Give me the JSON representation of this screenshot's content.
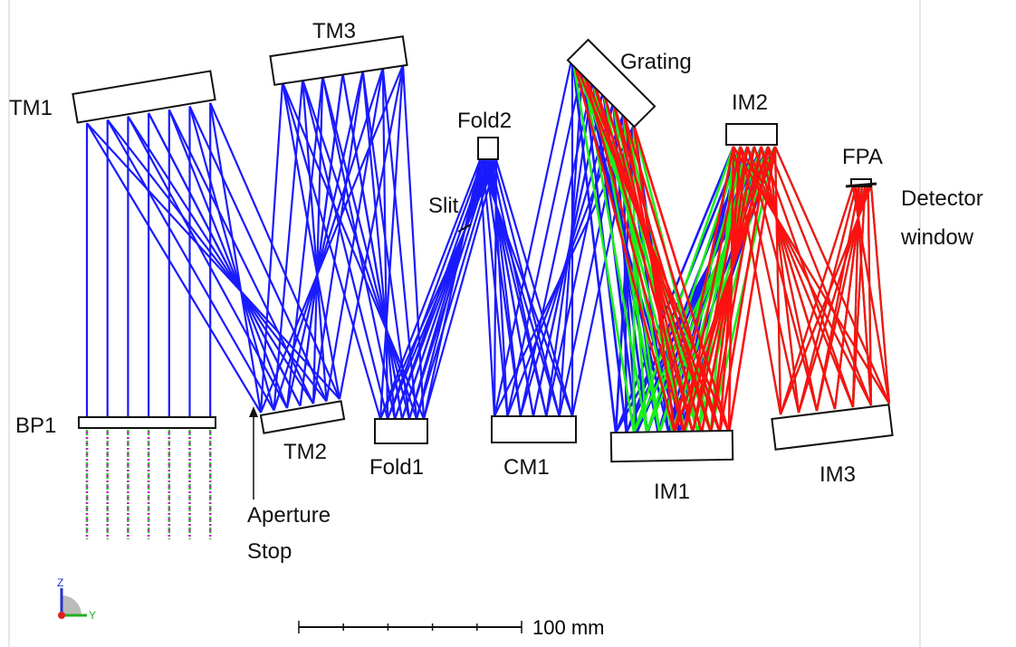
{
  "labels": {
    "tm1": "TM1",
    "tm3": "TM3",
    "tm2": "TM2",
    "bp1": "BP1",
    "fold1": "Fold1",
    "fold2": "Fold2",
    "slit": "Slit",
    "cm1": "CM1",
    "grating": "Grating",
    "im1": "IM1",
    "im2": "IM2",
    "im3": "IM3",
    "fpa": "FPA",
    "detector_window": [
      "Detector",
      "window"
    ],
    "aperture_stop": [
      "Aperture",
      "Stop"
    ]
  },
  "scale_bar": {
    "label": "100 mm"
  },
  "axes": {
    "z": "Z",
    "y": "Y"
  }
}
